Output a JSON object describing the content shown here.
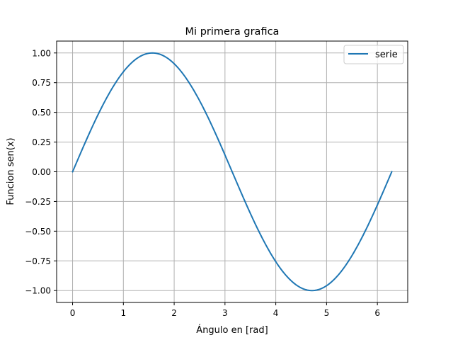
{
  "chart_data": {
    "type": "line",
    "title": "Mi primera grafica",
    "xlabel": "Ángulo en [rad]",
    "ylabel": "Funcion sen(x)",
    "xlim": [
      -0.314,
      6.597
    ],
    "ylim": [
      -1.1,
      1.1
    ],
    "x_ticks": [
      0,
      1,
      2,
      3,
      4,
      5,
      6
    ],
    "x_tick_labels": [
      "0",
      "1",
      "2",
      "3",
      "4",
      "5",
      "6"
    ],
    "y_ticks": [
      -1.0,
      -0.75,
      -0.5,
      -0.25,
      0.0,
      0.25,
      0.5,
      0.75,
      1.0
    ],
    "y_tick_labels": [
      "−1.00",
      "−0.75",
      "−0.50",
      "−0.25",
      "0.00",
      "0.25",
      "0.50",
      "0.75",
      "1.00"
    ],
    "grid": true,
    "legend_position": "upper right",
    "series": [
      {
        "name": "serie",
        "color": "#1f77b4",
        "function": "sin(x)",
        "x": [
          0,
          0.2513,
          0.5027,
          0.754,
          1.0053,
          1.2566,
          1.508,
          1.7593,
          2.0106,
          2.2619,
          2.5133,
          2.7646,
          3.0159,
          3.2673,
          3.5186,
          3.7699,
          4.0212,
          4.2726,
          4.5239,
          4.7752,
          5.0265,
          5.2779,
          5.5292,
          5.7805,
          6.0319,
          6.2832
        ],
        "y": [
          0,
          0.2487,
          0.4818,
          0.6845,
          0.8443,
          0.9511,
          0.998,
          0.9823,
          0.9048,
          0.7705,
          0.5878,
          0.3681,
          0.1253,
          -0.1253,
          -0.3681,
          -0.5878,
          -0.7705,
          -0.9048,
          -0.9823,
          -0.998,
          -0.9511,
          -0.8443,
          -0.6845,
          -0.4818,
          -0.2487,
          0
        ]
      }
    ]
  }
}
